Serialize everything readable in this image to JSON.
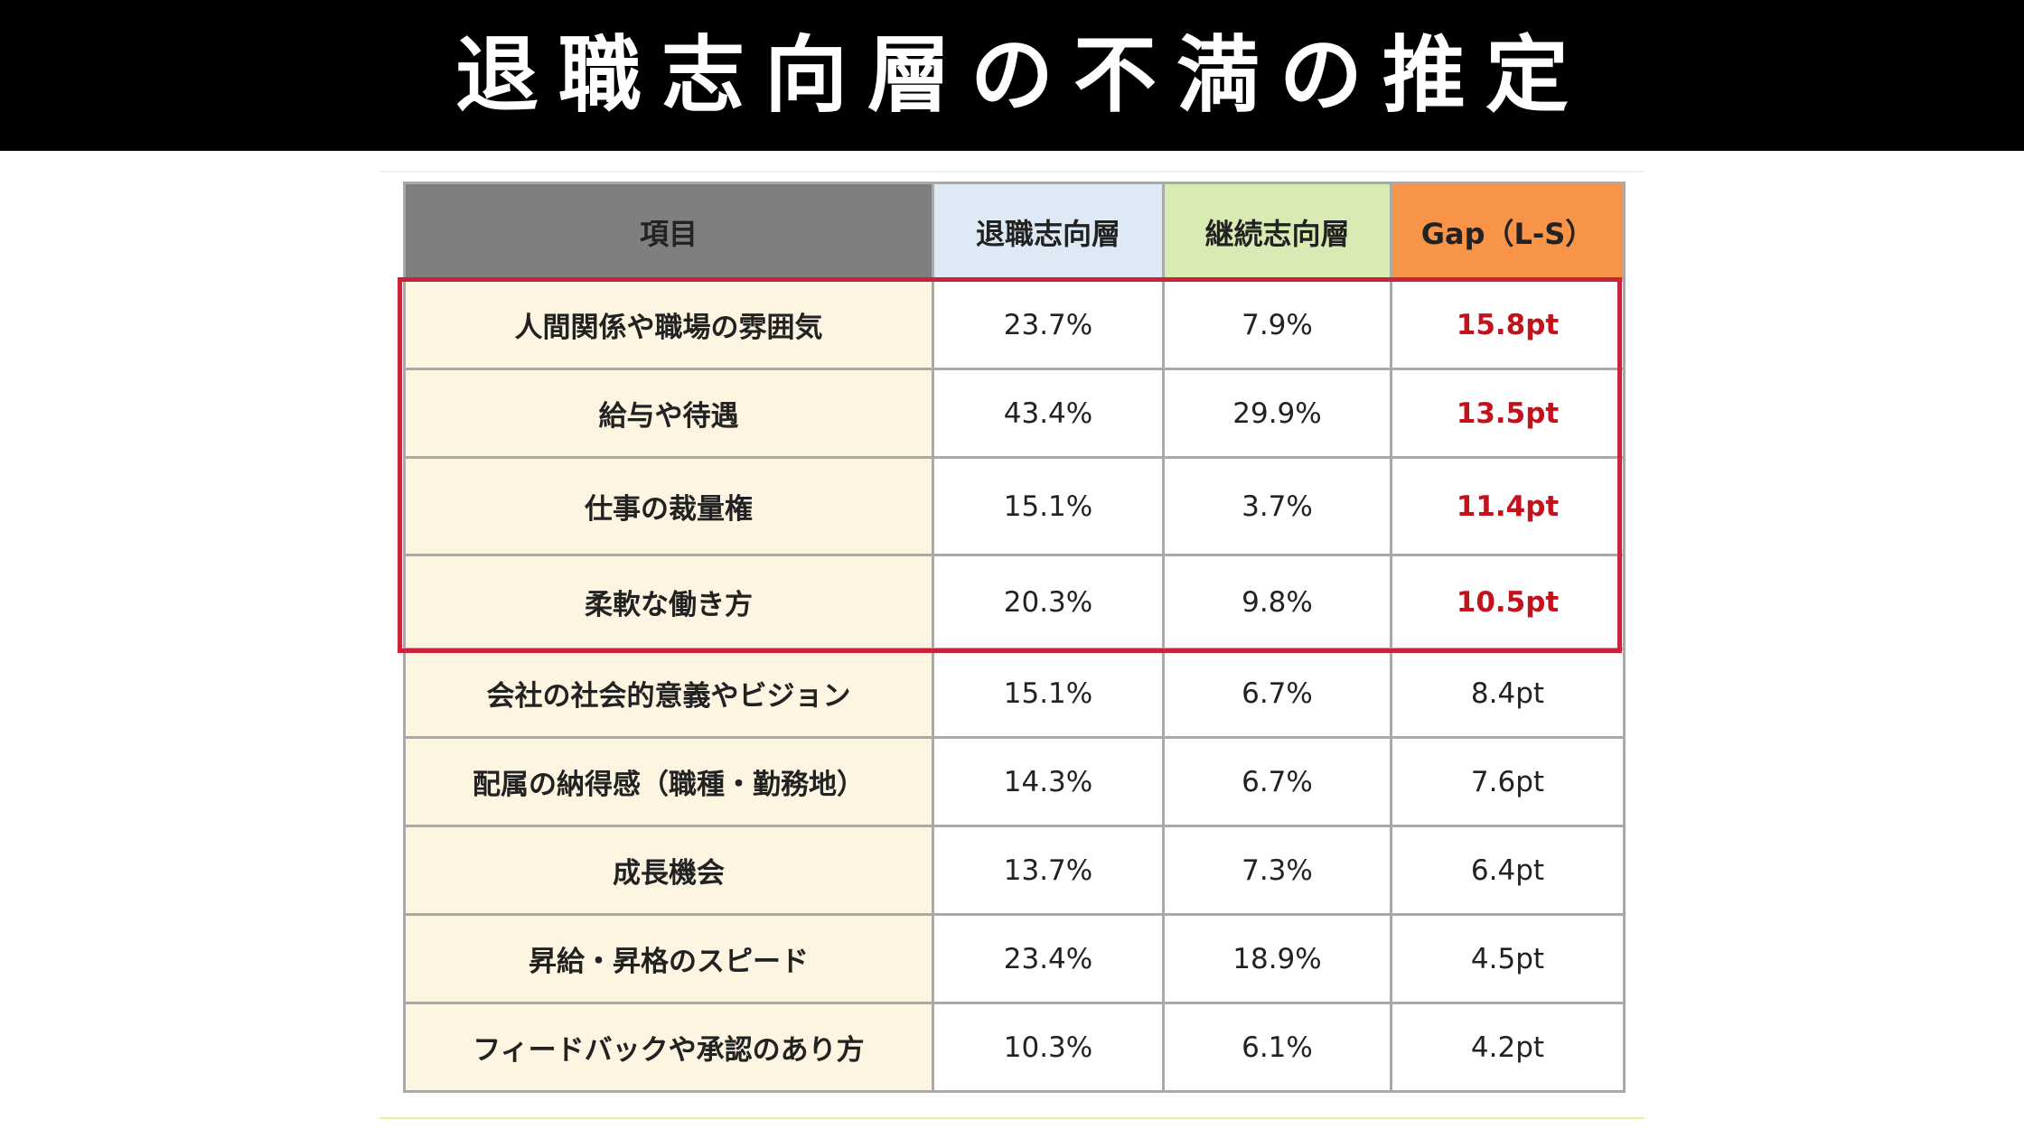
{
  "title": "退職志向層の不満の推定",
  "table": {
    "headers": {
      "item": "項目",
      "leave": "退職志向層",
      "stay": "継続志向層",
      "gap": "Gap（L-S）"
    },
    "rows": [
      {
        "item": "人間関係や職場の雰囲気",
        "leave": "23.7%",
        "stay": "7.9%",
        "gap": "15.8pt",
        "highlight": true
      },
      {
        "item": "給与や待遇",
        "leave": "43.4%",
        "stay": "29.9%",
        "gap": "13.5pt",
        "highlight": true
      },
      {
        "item": "仕事の裁量権",
        "leave": "15.1%",
        "stay": "3.7%",
        "gap": "11.4pt",
        "highlight": true
      },
      {
        "item": "柔軟な働き方",
        "leave": "20.3%",
        "stay": "9.8%",
        "gap": "10.5pt",
        "highlight": true
      },
      {
        "item": "会社の社会的意義やビジョン",
        "leave": "15.1%",
        "stay": "6.7%",
        "gap": "8.4pt",
        "highlight": false
      },
      {
        "item": "配属の納得感（職種・勤務地）",
        "leave": "14.3%",
        "stay": "6.7%",
        "gap": "7.6pt",
        "highlight": false
      },
      {
        "item": "成長機会",
        "leave": "13.7%",
        "stay": "7.3%",
        "gap": "6.4pt",
        "highlight": false
      },
      {
        "item": "昇給・昇格のスピード",
        "leave": "23.4%",
        "stay": "18.9%",
        "gap": "4.5pt",
        "highlight": false
      },
      {
        "item": "フィードバックや承認のあり方",
        "leave": "10.3%",
        "stay": "6.1%",
        "gap": "4.2pt",
        "highlight": false
      }
    ]
  },
  "colors": {
    "header_item": "#7f7f7f",
    "header_leave": "#dde9f5",
    "header_stay": "#d8ebb3",
    "header_gap": "#f79447",
    "item_cell": "#fdf4e1",
    "highlight_border": "#c8243c",
    "highlight_gap_text": "#c4121d"
  }
}
